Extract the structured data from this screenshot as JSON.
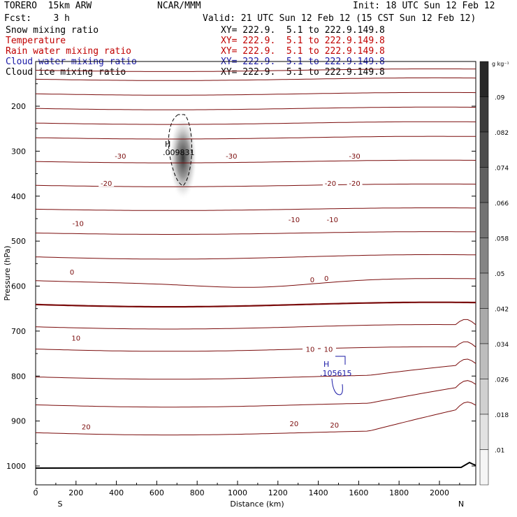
{
  "header": {
    "model_name": "TORERO  15km ARW",
    "org": "NCAR/MMM",
    "init": "Init: 18 UTC Sun 12 Feb 12",
    "fcst": "Fcst:    3 h",
    "valid": "Valid: 21 UTC Sun 12 Feb 12 (15 CST Sun 12 Feb 12)",
    "fields": [
      {
        "name": "Snow mixing ratio",
        "xy": "XY= 222.9.  5.1 to 222.9.149.8",
        "color": "#000000"
      },
      {
        "name": "Temperature",
        "xy": "XY= 222.9.  5.1 to 222.9.149.8",
        "color": "#c00000"
      },
      {
        "name": "Rain water mixing ratio",
        "xy": "XY= 222.9.  5.1 to 222.9.149.8",
        "color": "#c00000"
      },
      {
        "name": "Cloud water mixing ratio",
        "xy": "XY= 222.9.  5.1 to 222.9.149.8",
        "color": "#1a1aa6"
      },
      {
        "name": "Cloud ice mixing ratio",
        "xy": "XY= 222.9.  5.1 to 222.9.149.8",
        "color": "#000000"
      }
    ]
  },
  "chart_data": {
    "type": "cross-section contour",
    "xlabel": "Distance (km)",
    "ylabel": "Pressure (hPa)",
    "xlim": [
      0,
      2180
    ],
    "ylim": [
      1050,
      100
    ],
    "x_ticks": [
      0,
      200,
      400,
      600,
      800,
      1000,
      1200,
      1400,
      1600,
      1800,
      2000
    ],
    "y_ticks": [
      200,
      300,
      400,
      500,
      600,
      700,
      800,
      900,
      1000
    ],
    "end_labels": {
      "left": "S",
      "right": "N"
    },
    "colorbar": {
      "unit": "g kg⁻¹",
      "levels": [
        ".01",
        ".018",
        ".026",
        ".034",
        ".042",
        ".05",
        ".058",
        ".066",
        ".074",
        ".082",
        ".09"
      ]
    },
    "temperature_contours": [
      {
        "value": -30,
        "labels": [
          {
            "x": 420,
            "p": 310
          },
          {
            "x": 970,
            "p": 310
          },
          {
            "x": 1580,
            "p": 310
          }
        ]
      },
      {
        "value": -20,
        "labels": [
          {
            "x": 350,
            "p": 371
          },
          {
            "x": 1460,
            "p": 371
          },
          {
            "x": 1580,
            "p": 371
          }
        ]
      },
      {
        "value": -10,
        "labels": [
          {
            "x": 210,
            "p": 460
          },
          {
            "x": 1280,
            "p": 452
          },
          {
            "x": 1470,
            "p": 452
          }
        ]
      },
      {
        "value": 0,
        "labels": [
          {
            "x": 180,
            "p": 568
          },
          {
            "x": 1370,
            "p": 585
          },
          {
            "x": 1440,
            "p": 582
          }
        ]
      },
      {
        "value": 10,
        "labels": [
          {
            "x": 200,
            "p": 715
          },
          {
            "x": 1360,
            "p": 740
          },
          {
            "x": 1450,
            "p": 740
          }
        ]
      },
      {
        "value": 20,
        "labels": [
          {
            "x": 250,
            "p": 912
          },
          {
            "x": 1280,
            "p": 905
          },
          {
            "x": 1480,
            "p": 908
          }
        ]
      }
    ],
    "extrema": [
      {
        "label": "H",
        "value": ".009831",
        "x": 710,
        "p": 305,
        "field": "Cloud ice mixing ratio"
      },
      {
        "label": "H",
        "value": ".105615",
        "x": 1490,
        "p": 800,
        "field": "Cloud water mixing ratio"
      }
    ]
  }
}
